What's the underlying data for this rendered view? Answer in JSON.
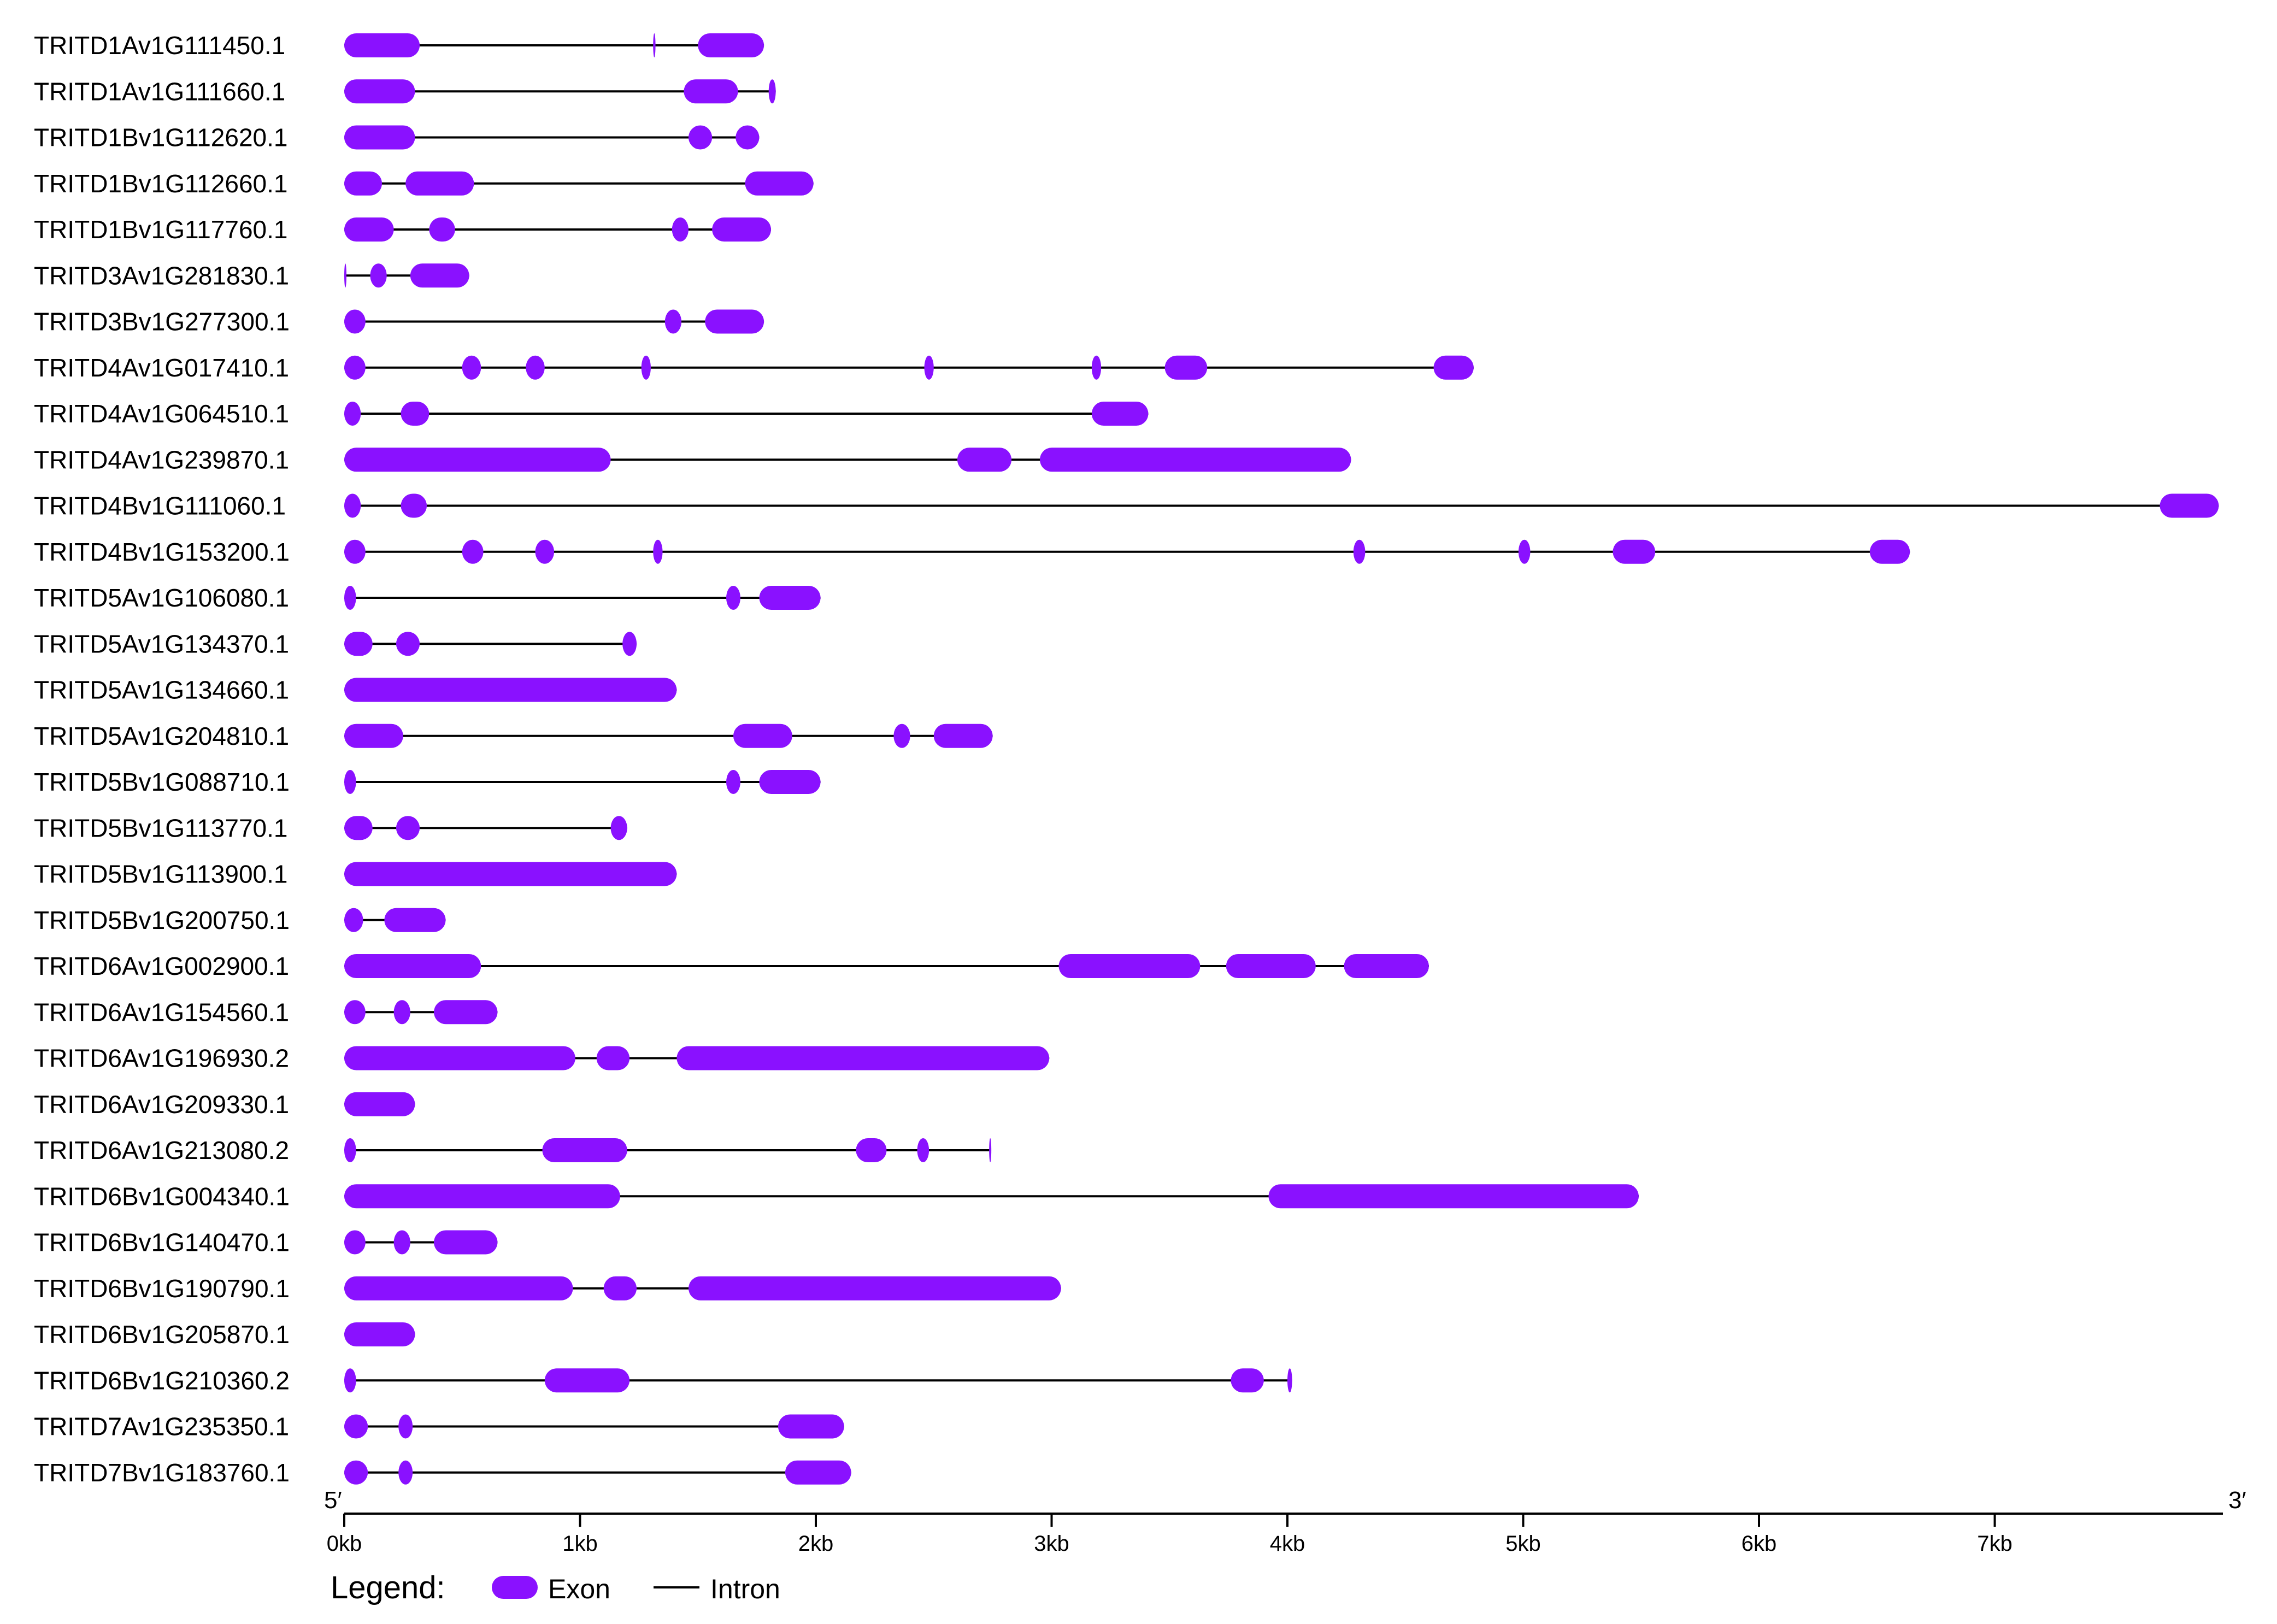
{
  "chart_data": {
    "type": "gene_structure",
    "x_unit": "kb",
    "xlim": [
      0,
      7.95
    ],
    "axis": {
      "ticks": [
        {
          "value": 0,
          "label": "0kb"
        },
        {
          "value": 1,
          "label": "1kb"
        },
        {
          "value": 2,
          "label": "2kb"
        },
        {
          "value": 3,
          "label": "3kb"
        },
        {
          "value": 4,
          "label": "4kb"
        },
        {
          "value": 5,
          "label": "5kb"
        },
        {
          "value": 6,
          "label": "6kb"
        },
        {
          "value": 7,
          "label": "7kb"
        }
      ],
      "end_5_label": "5′",
      "end_3_label": "3′"
    },
    "legend": {
      "title": "Legend:",
      "exon_label": "Exon",
      "intron_label": "Intron"
    },
    "colors": {
      "exon": "#8A11FF",
      "intron": "#000000",
      "axis": "#000000",
      "text": "#000000"
    },
    "genes": [
      {
        "name": "TRITD1Av1G111450.1",
        "length": 1.78,
        "exons": [
          [
            0,
            0.32
          ],
          [
            1.31,
            1.32
          ],
          [
            1.5,
            1.78
          ]
        ]
      },
      {
        "name": "TRITD1Av1G111660.1",
        "length": 1.83,
        "exons": [
          [
            0,
            0.3
          ],
          [
            1.44,
            1.67
          ],
          [
            1.8,
            1.83
          ]
        ]
      },
      {
        "name": "TRITD1Bv1G112620.1",
        "length": 1.76,
        "exons": [
          [
            0,
            0.3
          ],
          [
            1.46,
            1.56
          ],
          [
            1.66,
            1.76
          ]
        ]
      },
      {
        "name": "TRITD1Bv1G112660.1",
        "length": 1.99,
        "exons": [
          [
            0,
            0.16
          ],
          [
            0.26,
            0.55
          ],
          [
            1.7,
            1.99
          ]
        ]
      },
      {
        "name": "TRITD1Bv1G117760.1",
        "length": 1.81,
        "exons": [
          [
            0,
            0.21
          ],
          [
            0.36,
            0.47
          ],
          [
            1.39,
            1.46
          ],
          [
            1.56,
            1.81
          ]
        ]
      },
      {
        "name": "TRITD3Av1G281830.1",
        "length": 0.53,
        "exons": [
          [
            0,
            0.006
          ],
          [
            0.11,
            0.18
          ],
          [
            0.28,
            0.53
          ]
        ]
      },
      {
        "name": "TRITD3Bv1G277300.1",
        "length": 1.78,
        "exons": [
          [
            0,
            0.09
          ],
          [
            1.36,
            1.43
          ],
          [
            1.53,
            1.78
          ]
        ]
      },
      {
        "name": "TRITD4Av1G017410.1",
        "length": 4.79,
        "exons": [
          [
            0,
            0.09
          ],
          [
            0.5,
            0.58
          ],
          [
            0.77,
            0.85
          ],
          [
            1.26,
            1.3
          ],
          [
            2.46,
            2.5
          ],
          [
            3.17,
            3.21
          ],
          [
            3.48,
            3.66
          ],
          [
            4.62,
            4.79
          ]
        ]
      },
      {
        "name": "TRITD4Av1G064510.1",
        "length": 3.41,
        "exons": [
          [
            0,
            0.07
          ],
          [
            0.24,
            0.36
          ],
          [
            3.17,
            3.41
          ]
        ]
      },
      {
        "name": "TRITD4Av1G239870.1",
        "length": 4.27,
        "exons": [
          [
            0,
            1.13
          ],
          [
            2.6,
            2.83
          ],
          [
            2.95,
            4.27
          ]
        ]
      },
      {
        "name": "TRITD4Bv1G111060.1",
        "length": 7.95,
        "exons": [
          [
            0,
            0.07
          ],
          [
            0.24,
            0.35
          ],
          [
            7.7,
            7.95
          ]
        ]
      },
      {
        "name": "TRITD4Bv1G153200.1",
        "length": 6.64,
        "exons": [
          [
            0,
            0.09
          ],
          [
            0.5,
            0.59
          ],
          [
            0.81,
            0.89
          ],
          [
            1.31,
            1.35
          ],
          [
            4.28,
            4.33
          ],
          [
            4.98,
            5.03
          ],
          [
            5.38,
            5.56
          ],
          [
            6.47,
            6.64
          ]
        ]
      },
      {
        "name": "TRITD5Av1G106080.1",
        "length": 2.02,
        "exons": [
          [
            0,
            0.05
          ],
          [
            1.62,
            1.68
          ],
          [
            1.76,
            2.02
          ]
        ]
      },
      {
        "name": "TRITD5Av1G134370.1",
        "length": 1.24,
        "exons": [
          [
            0,
            0.12
          ],
          [
            0.22,
            0.32
          ],
          [
            1.18,
            1.24
          ]
        ]
      },
      {
        "name": "TRITD5Av1G134660.1",
        "length": 1.41,
        "exons": [
          [
            0,
            1.41
          ]
        ]
      },
      {
        "name": "TRITD5Av1G204810.1",
        "length": 2.75,
        "exons": [
          [
            0,
            0.25
          ],
          [
            1.65,
            1.9
          ],
          [
            2.33,
            2.4
          ],
          [
            2.5,
            2.75
          ]
        ]
      },
      {
        "name": "TRITD5Bv1G088710.1",
        "length": 2.02,
        "exons": [
          [
            0,
            0.05
          ],
          [
            1.62,
            1.68
          ],
          [
            1.76,
            2.02
          ]
        ]
      },
      {
        "name": "TRITD5Bv1G113770.1",
        "length": 1.2,
        "exons": [
          [
            0,
            0.12
          ],
          [
            0.22,
            0.32
          ],
          [
            1.13,
            1.2
          ]
        ]
      },
      {
        "name": "TRITD5Bv1G113900.1",
        "length": 1.41,
        "exons": [
          [
            0,
            1.41
          ]
        ]
      },
      {
        "name": "TRITD5Bv1G200750.1",
        "length": 0.43,
        "exons": [
          [
            0,
            0.08
          ],
          [
            0.17,
            0.43
          ]
        ]
      },
      {
        "name": "TRITD6Av1G002900.1",
        "length": 4.6,
        "exons": [
          [
            0,
            0.58
          ],
          [
            3.03,
            3.63
          ],
          [
            3.74,
            4.12
          ],
          [
            4.24,
            4.6
          ]
        ]
      },
      {
        "name": "TRITD6Av1G154560.1",
        "length": 0.65,
        "exons": [
          [
            0,
            0.09
          ],
          [
            0.21,
            0.28
          ],
          [
            0.38,
            0.65
          ]
        ]
      },
      {
        "name": "TRITD6Av1G196930.2",
        "length": 2.99,
        "exons": [
          [
            0,
            0.98
          ],
          [
            1.07,
            1.21
          ],
          [
            1.41,
            2.99
          ]
        ]
      },
      {
        "name": "TRITD6Av1G209330.1",
        "length": 0.3,
        "exons": [
          [
            0,
            0.3
          ]
        ]
      },
      {
        "name": "TRITD6Av1G213080.2",
        "length": 2.74,
        "exons": [
          [
            0,
            0.05
          ],
          [
            0.84,
            1.2
          ],
          [
            2.17,
            2.3
          ],
          [
            2.43,
            2.48
          ],
          [
            2.735,
            2.74
          ]
        ]
      },
      {
        "name": "TRITD6Bv1G004340.1",
        "length": 5.49,
        "exons": [
          [
            0,
            1.17
          ],
          [
            3.92,
            5.49
          ]
        ]
      },
      {
        "name": "TRITD6Bv1G140470.1",
        "length": 0.65,
        "exons": [
          [
            0,
            0.09
          ],
          [
            0.21,
            0.28
          ],
          [
            0.38,
            0.65
          ]
        ]
      },
      {
        "name": "TRITD6Bv1G190790.1",
        "length": 3.04,
        "exons": [
          [
            0,
            0.97
          ],
          [
            1.1,
            1.24
          ],
          [
            1.46,
            3.04
          ]
        ]
      },
      {
        "name": "TRITD6Bv1G205870.1",
        "length": 0.3,
        "exons": [
          [
            0,
            0.3
          ]
        ]
      },
      {
        "name": "TRITD6Bv1G210360.2",
        "length": 4.02,
        "exons": [
          [
            0,
            0.05
          ],
          [
            0.85,
            1.21
          ],
          [
            3.76,
            3.9
          ],
          [
            4.0,
            4.02
          ]
        ]
      },
      {
        "name": "TRITD7Av1G235350.1",
        "length": 2.12,
        "exons": [
          [
            0,
            0.1
          ],
          [
            0.23,
            0.29
          ],
          [
            1.84,
            2.12
          ]
        ]
      },
      {
        "name": "TRITD7Bv1G183760.1",
        "length": 2.15,
        "exons": [
          [
            0,
            0.1
          ],
          [
            0.23,
            0.29
          ],
          [
            1.87,
            2.15
          ]
        ]
      }
    ]
  }
}
